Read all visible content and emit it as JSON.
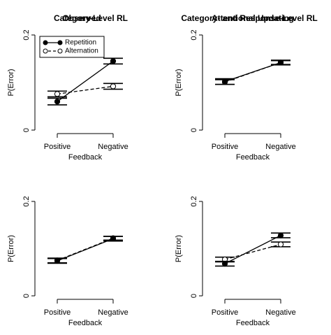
{
  "chart_data": [
    {
      "type": "line",
      "title": "Observed",
      "ylabel": "P(Error)",
      "xlabel": "Feedback",
      "categories": [
        "Positive",
        "Negative"
      ],
      "ylim": [
        0,
        0.2
      ],
      "yticks": [
        "0",
        "0.2"
      ],
      "legend": {
        "placement": "top-left",
        "entries": [
          {
            "name": "Repetition",
            "marker": "filled",
            "line": "solid"
          },
          {
            "name": "Alternation",
            "marker": "open",
            "line": "dashed"
          }
        ]
      },
      "series": [
        {
          "name": "Repetition",
          "values": [
            0.06,
            0.145
          ],
          "err": [
            0.007,
            0.006
          ],
          "marker": "filled",
          "line": "solid"
        },
        {
          "name": "Alternation",
          "values": [
            0.076,
            0.092
          ],
          "err": [
            0.006,
            0.006
          ],
          "marker": "open",
          "line": "dashed"
        }
      ]
    },
    {
      "type": "line",
      "title": "Attentional Updating",
      "ylabel": "P(Error)",
      "xlabel": "Feedback",
      "categories": [
        "Positive",
        "Negative"
      ],
      "ylim": [
        0,
        0.2
      ],
      "yticks": [
        "0",
        "0.2"
      ],
      "series": [
        {
          "name": "Repetition",
          "values": [
            0.102,
            0.142
          ],
          "err": [
            0.006,
            0.005
          ],
          "marker": "filled",
          "line": "solid"
        },
        {
          "name": "Alternation",
          "values": [
            0.101,
            0.142
          ],
          "err": [
            0.005,
            0.004
          ],
          "marker": "open",
          "line": "dashed"
        }
      ]
    },
    {
      "type": "line",
      "title": "Category-Level RL",
      "ylabel": "P(Error)",
      "xlabel": "Feedback",
      "categories": [
        "Positive",
        "Negative"
      ],
      "ylim": [
        0,
        0.2
      ],
      "yticks": [
        "0",
        "0.2"
      ],
      "series": [
        {
          "name": "Repetition",
          "values": [
            0.074,
            0.121
          ],
          "err": [
            0.005,
            0.005
          ],
          "marker": "filled",
          "line": "solid"
        },
        {
          "name": "Alternation",
          "values": [
            0.075,
            0.122
          ],
          "err": [
            0.005,
            0.004
          ],
          "marker": "open",
          "line": "dashed"
        }
      ]
    },
    {
      "type": "line",
      "title": "Category- and Response-Level RL",
      "ylabel": "P(Error)",
      "xlabel": "Feedback",
      "categories": [
        "Positive",
        "Negative"
      ],
      "ylim": [
        0,
        0.2
      ],
      "yticks": [
        "0",
        "0.2"
      ],
      "series": [
        {
          "name": "Repetition",
          "values": [
            0.068,
            0.128
          ],
          "err": [
            0.005,
            0.005
          ],
          "marker": "filled",
          "line": "solid"
        },
        {
          "name": "Alternation",
          "values": [
            0.077,
            0.109
          ],
          "err": [
            0.005,
            0.005
          ],
          "marker": "open",
          "line": "dashed"
        }
      ]
    }
  ]
}
